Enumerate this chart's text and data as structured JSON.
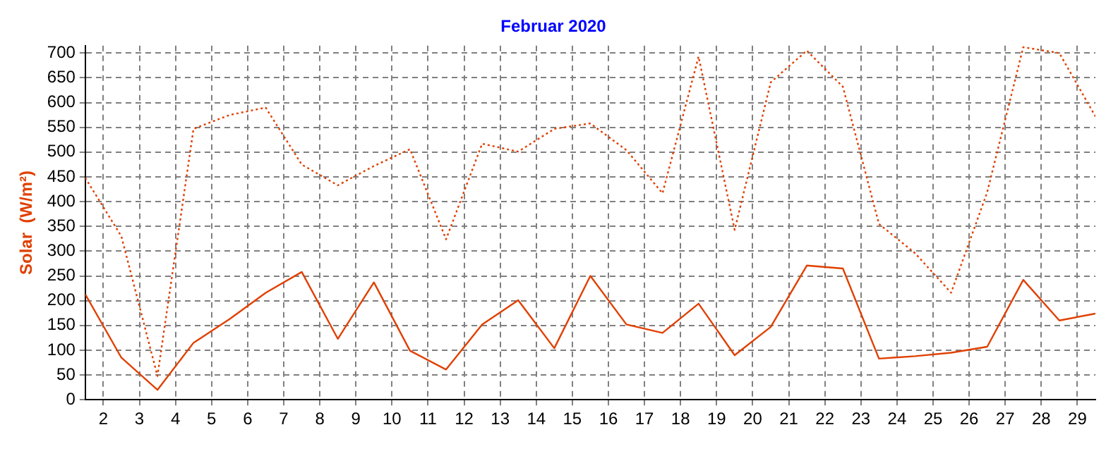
{
  "chart_data": {
    "type": "line",
    "title": "Februar 2020",
    "ylabel": "Solar  (W/m²)",
    "x": [
      1.5,
      2.5,
      3.5,
      4.5,
      5.5,
      6.5,
      7.5,
      8.5,
      9.5,
      10.5,
      11.5,
      12.5,
      13.5,
      14.5,
      15.5,
      16.5,
      17.5,
      18.5,
      19.5,
      20.5,
      21.5,
      22.5,
      23.5,
      24.5,
      25.5,
      26.5,
      27.5,
      28.5,
      29.5
    ],
    "series": [
      {
        "color": "#e04000",
        "line_style": "solid",
        "values": [
          213,
          85,
          20,
          115,
          163,
          216,
          258,
          123,
          237,
          99,
          61,
          152,
          201,
          104,
          250,
          152,
          135,
          194,
          90,
          147,
          271,
          265,
          83,
          88,
          95,
          107,
          242,
          160,
          174
        ]
      },
      {
        "color": "#e04000",
        "line_style": "dotted",
        "values": [
          448,
          330,
          48,
          547,
          575,
          590,
          475,
          433,
          472,
          506,
          324,
          517,
          501,
          547,
          558,
          504,
          417,
          693,
          343,
          641,
          705,
          632,
          355,
          296,
          216,
          419,
          712,
          700,
          572
        ]
      }
    ],
    "xlim": [
      1.5,
      29.5
    ],
    "xticks": [
      2,
      3,
      4,
      5,
      6,
      7,
      8,
      9,
      10,
      11,
      12,
      13,
      14,
      15,
      16,
      17,
      18,
      19,
      20,
      21,
      22,
      23,
      24,
      25,
      26,
      27,
      28,
      29
    ],
    "ylim": [
      0,
      715
    ],
    "yticks": [
      0,
      50,
      100,
      150,
      200,
      250,
      300,
      350,
      400,
      450,
      500,
      550,
      600,
      650,
      700
    ],
    "grid": true,
    "legend": false,
    "marker": "none"
  }
}
